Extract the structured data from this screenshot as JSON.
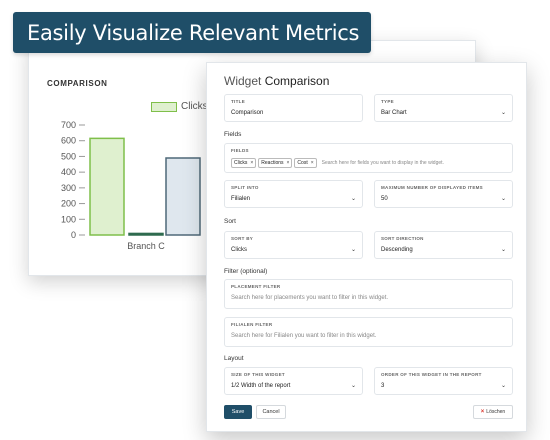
{
  "banner": {
    "title": "Easily Visualize Relevant Metrics"
  },
  "background_card": {
    "title": "COMPARISON"
  },
  "chart_data": {
    "type": "bar",
    "categories": [
      "",
      "Branch C",
      ""
    ],
    "series": [
      {
        "name": "Clicks:",
        "values": [
          615,
          10,
          490
        ],
        "colors": [
          "#dff0cf",
          "#2f6b4f",
          "#dfe7ee"
        ]
      }
    ],
    "ylim": [
      0,
      700
    ],
    "yticks": [
      0,
      100,
      200,
      300,
      400,
      500,
      600,
      700
    ],
    "legend": "top",
    "grid": false
  },
  "modal": {
    "title_prefix": "Widget",
    "title_name": "Comparison",
    "title_field": {
      "label": "TITLE",
      "value": "Comparison"
    },
    "type_field": {
      "label": "TYPE",
      "value": "Bar Chart"
    },
    "fields_section": "Fields",
    "fields_field": {
      "label": "FIELDS",
      "chips": [
        "Clicks",
        "Reactions",
        "Cost"
      ],
      "chip_remove": "×",
      "placeholder": "Search here for fields you want to display in the widget."
    },
    "split_into": {
      "label": "SPLIT INTO",
      "value": "Filialen"
    },
    "max_items": {
      "label": "MAXIMUM NUMBER OF DISPLAYED ITEMS",
      "value": "50"
    },
    "sort_section": "Sort",
    "sort_by": {
      "label": "SORT BY",
      "value": "Clicks"
    },
    "sort_direction": {
      "label": "SORT DIRECTION",
      "value": "Descending"
    },
    "filter_section": "Filter (optional)",
    "placement_filter": {
      "label": "PLACEMENT FILTER",
      "placeholder": "Search here for placements you want to filter in this widget."
    },
    "filialen_filter": {
      "label": "FILIALEN FILTER",
      "placeholder": "Search here for Filialen you want to filter in this widget."
    },
    "layout_section": "Layout",
    "size": {
      "label": "SIZE OF THIS WIDGET",
      "value": "1/2 Width of the report"
    },
    "order": {
      "label": "ORDER OF THIS WIDGET IN THE REPORT",
      "value": "3"
    },
    "save_label": "Save",
    "cancel_label": "Cancel",
    "delete_label": "Löschen",
    "chevron": "⌄"
  },
  "colors": {
    "brand": "#1f4e68",
    "bar_green_fill": "#dff0cf",
    "bar_green_stroke": "#7fbf4a",
    "bar_dark": "#2f6b4f",
    "bar_gray_fill": "#dfe7ee",
    "bar_gray_stroke": "#4f6878",
    "delete_icon": "#d9342b"
  },
  "icons": {
    "dropdown": "chevron-down-icon",
    "chip_remove": "close-icon",
    "delete": "close-icon"
  }
}
